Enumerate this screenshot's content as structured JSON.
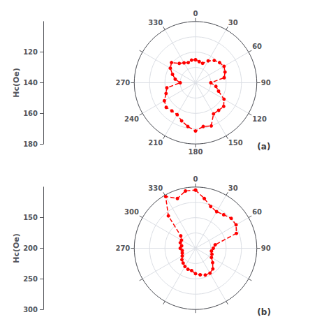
{
  "chart_data": [
    {
      "type": "polar",
      "title": "(a)",
      "ylabel": "Hc(Oe)",
      "x": [
        0,
        10,
        20,
        30,
        40,
        50,
        60,
        70,
        80,
        90,
        100,
        110,
        120,
        130,
        140,
        150,
        160,
        170,
        180,
        190,
        200,
        210,
        220,
        230,
        240,
        250,
        260,
        270,
        280,
        290,
        300,
        310,
        320,
        330,
        340,
        350
      ],
      "values": [
        130,
        128,
        127,
        133,
        138,
        141,
        143,
        141,
        138,
        120,
        127,
        132,
        143,
        148,
        147,
        147,
        160,
        158,
        163,
        158,
        153,
        148,
        148,
        150,
        147,
        141,
        138,
        120,
        127,
        132,
        138,
        141,
        133,
        130,
        128,
        130
      ],
      "color": "#FF0000",
      "marker": "circle",
      "line_style": "dashed",
      "xlim": [
        0,
        360
      ],
      "xticks": [
        0,
        30,
        60,
        90,
        120,
        150,
        180,
        210,
        240,
        270,
        330
      ],
      "ylim": [
        100,
        180
      ],
      "yticks": [
        120,
        140,
        160,
        180
      ],
      "grid": true
    },
    {
      "type": "polar",
      "title": "(b)",
      "ylabel": "Hc(Oe)",
      "x": [
        0,
        10,
        20,
        30,
        40,
        50,
        60,
        70,
        80,
        90,
        100,
        110,
        120,
        130,
        140,
        150,
        160,
        170,
        180,
        190,
        200,
        210,
        220,
        230,
        240,
        250,
        260,
        270,
        280,
        290,
        300,
        310,
        320,
        330,
        340,
        350
      ],
      "values": [
        290,
        265,
        245,
        238,
        243,
        252,
        253,
        242,
        165,
        158,
        153,
        157,
        160,
        173,
        188,
        194,
        193,
        188,
        183,
        174,
        173,
        169,
        163,
        158,
        150,
        146,
        144,
        150,
        146,
        153,
        153,
        163,
        238,
        295,
        273,
        290
      ],
      "color": "#FF0000",
      "marker": "circle",
      "line_style": "dashed",
      "xlim": [
        0,
        360
      ],
      "xticks": [
        0,
        30,
        60,
        90,
        270,
        300,
        330
      ],
      "ylim": [
        100,
        300
      ],
      "yticks": [
        150,
        200,
        250,
        300
      ],
      "grid": true
    }
  ]
}
